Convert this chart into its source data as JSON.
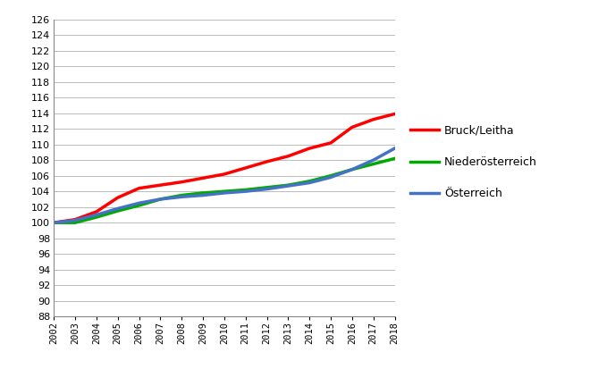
{
  "years": [
    2002,
    2003,
    2004,
    2005,
    2006,
    2007,
    2008,
    2009,
    2010,
    2011,
    2012,
    2013,
    2014,
    2015,
    2016,
    2017,
    2018
  ],
  "bruck_leitha": [
    100.0,
    100.4,
    101.4,
    103.2,
    104.4,
    104.8,
    105.2,
    105.7,
    106.2,
    107.0,
    107.8,
    108.5,
    109.5,
    110.2,
    112.2,
    113.2,
    113.9
  ],
  "niederoesterreich": [
    100.0,
    100.0,
    100.7,
    101.5,
    102.2,
    103.0,
    103.5,
    103.8,
    104.0,
    104.2,
    104.5,
    104.8,
    105.3,
    106.0,
    106.8,
    107.5,
    108.2
  ],
  "oesterreich": [
    100.0,
    100.3,
    101.0,
    101.8,
    102.5,
    103.0,
    103.3,
    103.5,
    103.8,
    104.0,
    104.3,
    104.7,
    105.1,
    105.8,
    106.8,
    108.0,
    109.5
  ],
  "colors": {
    "bruck_leitha": "#ff0000",
    "niederoesterreich": "#00aa00",
    "oesterreich": "#4472c4"
  },
  "legend_labels": [
    "Bruck/Leitha",
    "Niederösterreich",
    "Österreich"
  ],
  "ylim": [
    88,
    126
  ],
  "yticks": [
    88,
    90,
    92,
    94,
    96,
    98,
    100,
    102,
    104,
    106,
    108,
    110,
    112,
    114,
    116,
    118,
    120,
    122,
    124,
    126
  ],
  "line_width": 2.5,
  "background_color": "#ffffff",
  "grid_color": "#bbbbbb",
  "spine_color": "#888888"
}
